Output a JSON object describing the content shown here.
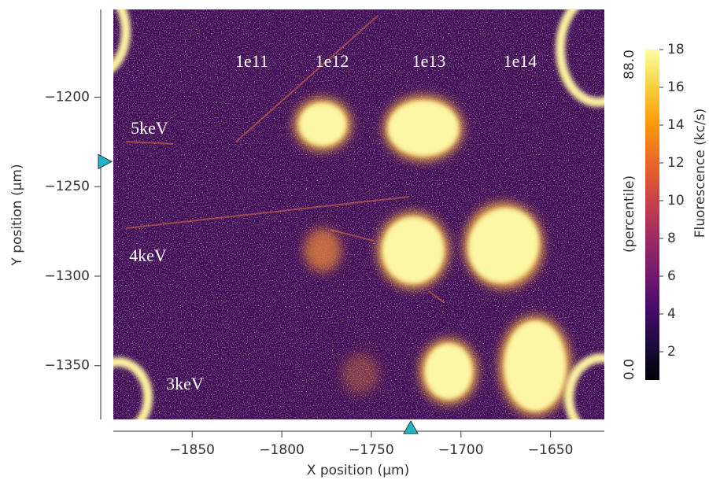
{
  "chart_data": {
    "type": "heatmap",
    "xlabel": "X position (μm)",
    "ylabel": "Y position (μm)",
    "xlim": [
      -1894,
      -1620
    ],
    "ylim": [
      -1151,
      -1380
    ],
    "xticks": [
      {
        "value": -1850,
        "label": "−1850"
      },
      {
        "value": -1800,
        "label": "−1800"
      },
      {
        "value": -1750,
        "label": "−1750"
      },
      {
        "value": -1700,
        "label": "−1700"
      },
      {
        "value": -1650,
        "label": "−1650"
      }
    ],
    "yticks": [
      {
        "value": -1200,
        "label": "−1200"
      },
      {
        "value": -1250,
        "label": "−1250"
      },
      {
        "value": -1300,
        "label": "−1300"
      },
      {
        "value": -1350,
        "label": "−1350"
      }
    ],
    "x_marker": -1728,
    "y_marker": -1236,
    "marker_color": "#1fb5c8",
    "colormap": "inferno",
    "colorbar": {
      "label": "Fluorescence (kc/s)",
      "lim": [
        0.5,
        18
      ],
      "ticks": [
        2,
        4,
        6,
        8,
        10,
        12,
        14,
        16,
        18
      ],
      "percentile_label": "(percentile)",
      "percentile_max": {
        "value": 88,
        "label": "88.0"
      },
      "percentile_min": {
        "value": 0,
        "label": "0.0"
      }
    },
    "annotations": [
      "1e11",
      "1e12",
      "1e13",
      "1e14",
      "5keV",
      "4keV",
      "3keV"
    ]
  }
}
